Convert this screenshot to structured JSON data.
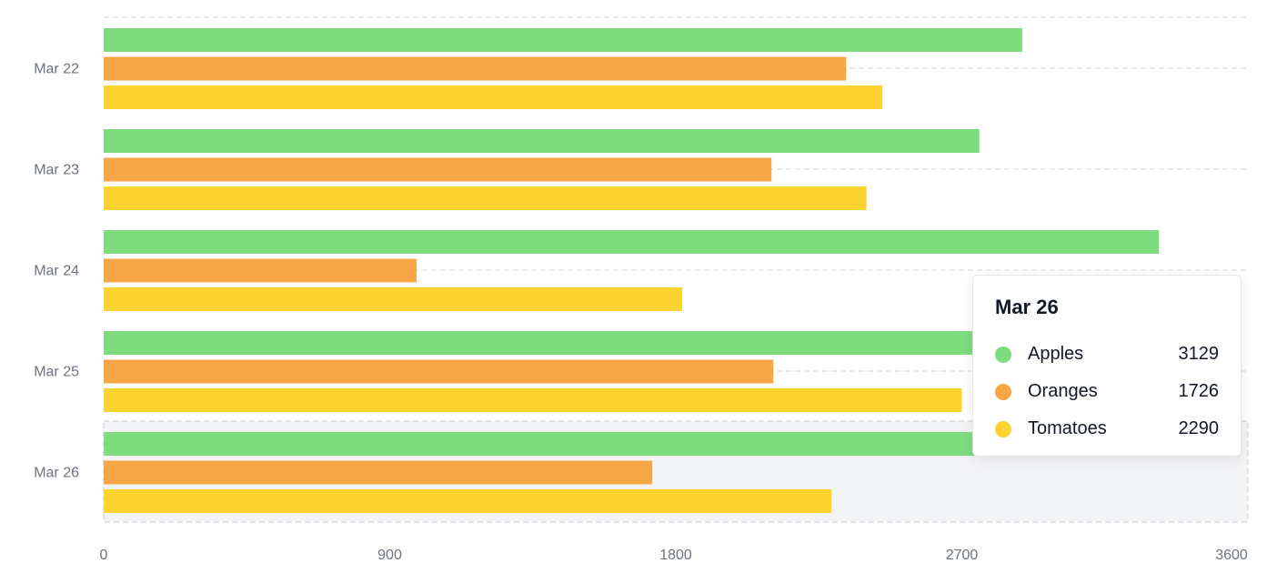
{
  "chart_data": {
    "type": "bar",
    "orientation": "horizontal",
    "categories": [
      "Mar 22",
      "Mar 23",
      "Mar 24",
      "Mar 25",
      "Mar 26"
    ],
    "series": [
      {
        "name": "Apples",
        "color": "#7ddd7e",
        "values": [
          2890,
          2755,
          3320,
          3000,
          3129
        ]
      },
      {
        "name": "Oranges",
        "color": "#f7a645",
        "values": [
          2336,
          2101,
          984,
          2107,
          1726
        ]
      },
      {
        "name": "Tomatoes",
        "color": "#fdd32f",
        "values": [
          2450,
          2400,
          1820,
          2700,
          2290
        ]
      }
    ],
    "x_ticks": [
      "0",
      "900",
      "1800",
      "2700",
      "3600"
    ],
    "xlim": [
      0,
      3600
    ],
    "grid": true,
    "highlighted_category": "Mar 26"
  },
  "tooltip": {
    "title": "Mar 26",
    "rows": [
      {
        "label": "Apples",
        "value": "3129",
        "color": "#7ddd7e"
      },
      {
        "label": "Oranges",
        "value": "1726",
        "color": "#f7a645"
      },
      {
        "label": "Tomatoes",
        "value": "2290",
        "color": "#fdd32f"
      }
    ]
  }
}
